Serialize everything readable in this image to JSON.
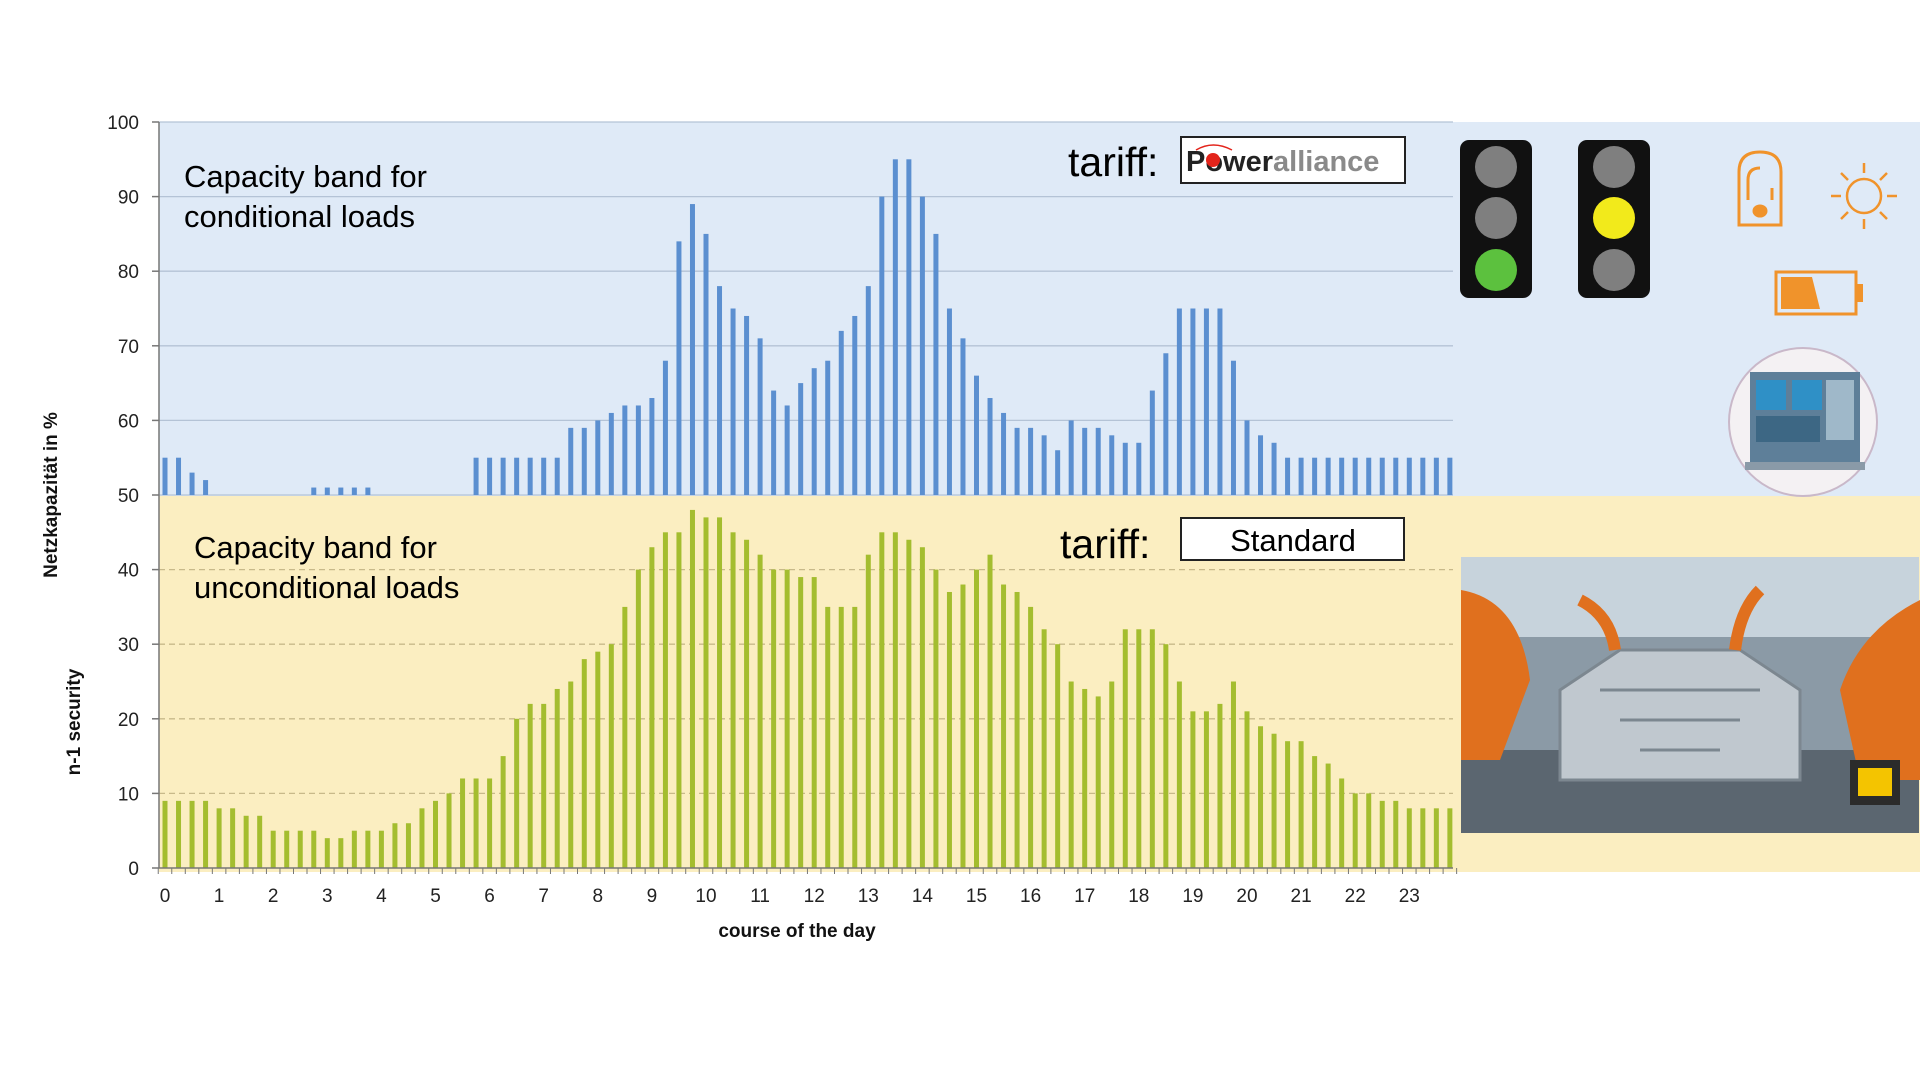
{
  "chart_data": {
    "type": "bar",
    "xlabel": "course of the day",
    "ylabel_upper": "Netzkapazität in %",
    "ylabel_lower": "n-1 security",
    "ylim": [
      0,
      100
    ],
    "yticks": [
      0,
      10,
      20,
      30,
      40,
      50,
      60,
      70,
      80,
      90,
      100
    ],
    "xticks": [
      "0",
      "1",
      "2",
      "3",
      "4",
      "5",
      "6",
      "7",
      "8",
      "9",
      "10",
      "11",
      "12",
      "13",
      "14",
      "15",
      "16",
      "17",
      "18",
      "19",
      "20",
      "21",
      "22",
      "23"
    ],
    "grid": true,
    "bands": [
      {
        "label": "Capacity band for conditional loads",
        "line1": "Capacity band for",
        "line2": "conditional loads",
        "range": [
          50,
          100
        ],
        "background": "#dfeaf7"
      },
      {
        "label": "Capacity band for unconditional loads",
        "line1": "Capacity band for",
        "line2": "unconditional loads",
        "range": [
          0,
          50
        ],
        "background": "#fbeec1"
      }
    ],
    "series": [
      {
        "color": "#5b8fd0",
        "band": "conditional",
        "values": [
          55,
          55,
          53,
          52,
          50,
          50,
          50,
          50,
          50,
          50,
          50,
          51,
          51,
          51,
          51,
          51,
          50,
          50,
          50,
          50,
          50,
          50,
          50,
          55,
          55,
          55,
          55,
          55,
          55,
          55,
          59,
          59,
          60,
          61,
          62,
          62,
          63,
          68,
          84,
          89,
          85,
          78,
          75,
          74,
          71,
          64,
          62,
          65,
          67,
          68,
          72,
          74,
          78,
          90,
          95,
          95,
          90,
          85,
          75,
          71,
          66,
          63,
          61,
          59,
          59,
          58,
          56,
          60,
          59,
          59,
          58,
          57,
          57,
          64,
          69,
          75,
          75,
          75,
          75,
          68,
          60,
          58,
          57,
          55,
          55,
          55,
          55,
          55,
          55,
          55,
          55,
          55,
          55,
          55,
          55,
          55
        ]
      },
      {
        "color": "#a4bd2f",
        "band": "unconditional",
        "values": [
          9,
          9,
          9,
          9,
          8,
          8,
          7,
          7,
          5,
          5,
          5,
          5,
          4,
          4,
          5,
          5,
          5,
          6,
          6,
          8,
          9,
          10,
          12,
          12,
          12,
          15,
          20,
          22,
          22,
          24,
          25,
          28,
          29,
          30,
          35,
          40,
          43,
          45,
          45,
          48,
          47,
          47,
          45,
          44,
          42,
          40,
          40,
          39,
          39,
          35,
          35,
          35,
          42,
          45,
          45,
          44,
          43,
          40,
          37,
          38,
          40,
          42,
          38,
          37,
          35,
          32,
          30,
          25,
          24,
          23,
          25,
          32,
          32,
          32,
          30,
          25,
          21,
          21,
          22,
          25,
          21,
          19,
          18,
          17,
          17,
          15,
          14,
          12,
          10,
          10,
          9,
          9,
          8,
          8,
          8,
          8
        ]
      }
    ]
  },
  "tariffs": {
    "conditional": {
      "label": "tariff:",
      "logo_dark": "P",
      "logo_ower": "ower",
      "logo_alliance": "alliance"
    },
    "unconditional": {
      "label": "tariff:",
      "value": "Standard"
    }
  },
  "traffic_lights": [
    {
      "name": "green",
      "active_color": "#5cc13e"
    },
    {
      "name": "yellow",
      "active_color": "#f2ea1b"
    }
  ],
  "icons": [
    "heat-storage-icon",
    "sun-icon",
    "battery-icon",
    "machine-icon",
    "factory-photo"
  ],
  "colors": {
    "upper_band": "#dfeaf7",
    "lower_band": "#fbeec1",
    "accent_orange": "#f0932b"
  }
}
